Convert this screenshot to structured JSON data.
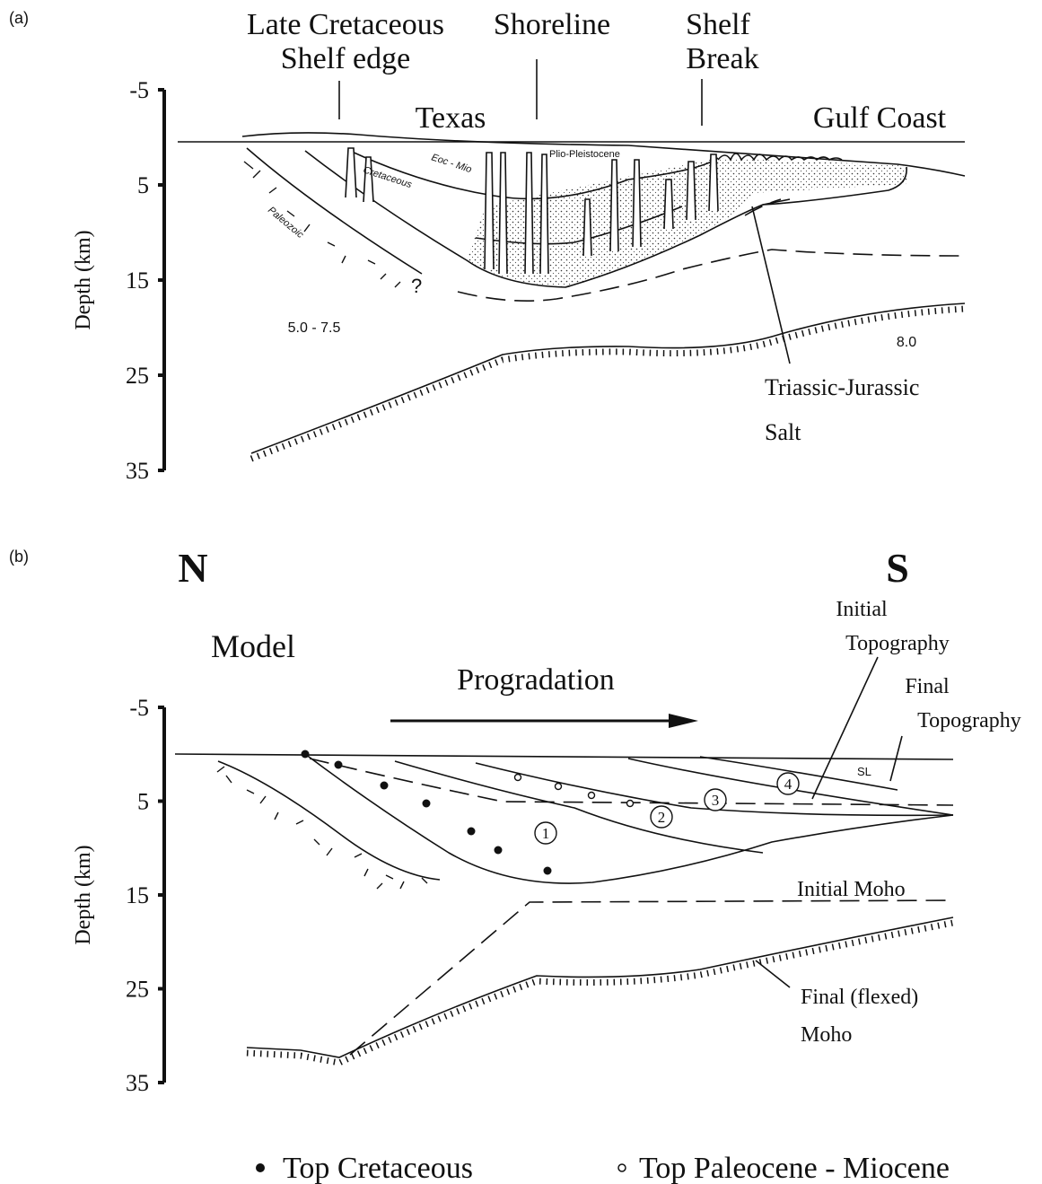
{
  "panel_a": {
    "label": "(a)",
    "axis_label": "Depth (km)",
    "ticks": [
      -5,
      5,
      15,
      25,
      35
    ],
    "headers": [
      "Late Cretaceous",
      "Shelf edge",
      "Shoreline",
      "Shelf",
      "Break"
    ],
    "regions": [
      "Texas",
      "Gulf Coast"
    ],
    "units": [
      "Eoc - Mio",
      "Plio-Pleistocene",
      "Cretaceous",
      "Paleozoic",
      "?"
    ],
    "velocities": [
      "5.0 - 7.5",
      "8.0"
    ],
    "salt_label": [
      "Triassic-Jurassic",
      "Salt"
    ]
  },
  "panel_b": {
    "label": "(b)",
    "axis_label": "Depth (km)",
    "ticks": [
      -5,
      5,
      15,
      25,
      35
    ],
    "north": "N",
    "south": "S",
    "title": "Model",
    "arrow_label": "Progradation",
    "initial_topography": [
      "Initial",
      "Topography"
    ],
    "final_topography": [
      "Final",
      "Topography"
    ],
    "sea_level": "SL",
    "stages": [
      "1",
      "2",
      "3",
      "4"
    ],
    "initial_moho": "Initial Moho",
    "final_moho": [
      "Final (flexed)",
      "Moho"
    ]
  },
  "legend": [
    "Top Cretaceous",
    "Top Paleocene - Miocene"
  ]
}
